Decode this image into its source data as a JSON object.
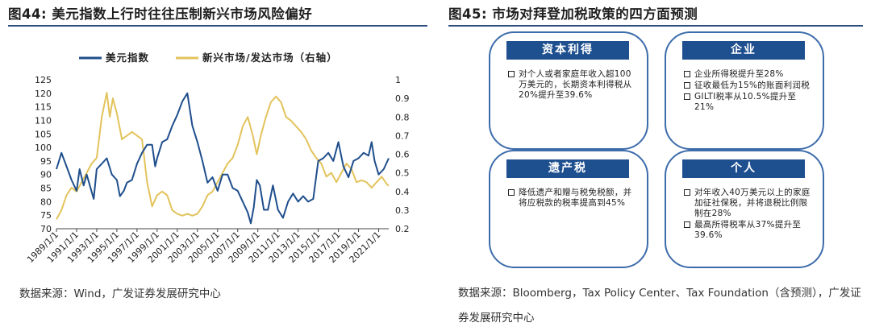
{
  "left_panel": {
    "title": "图44: 美元指数上行时往往压制新兴市场风险偏好",
    "source": "数据来源：Wind，广发证券发展研究中心"
  },
  "right_panel": {
    "title": "图45: 市场对拜登加税政策的四方面预测",
    "source": "数据来源：Bloomberg，Tax Policy Center、Tax Foundation（含预测），广发证券发展研究中心",
    "cards": [
      {
        "title": "资本利得",
        "items": [
          "对个人或者家庭年收入超100万美元的，长期资本利得税从20%提升至39.6%"
        ]
      },
      {
        "title": "企业",
        "items": [
          "企业所得税提升至28%",
          "征收最低为15%的账面利润税",
          "GILTI税率从10.5%提升至21%"
        ]
      },
      {
        "title": "遗产税",
        "items": [
          "降低遗产和赠与税免税额，并将应税款的税率提高到45%"
        ]
      },
      {
        "title": "个人",
        "items": [
          "对年收入40万美元以上的家庭加征社保税，并将退税比例限制在28%",
          "最高所得税率从37%提升至39.6%"
        ]
      }
    ]
  },
  "chart_data": {
    "type": "line",
    "title": "美元指数上行时往往压制新兴市场风险偏好",
    "legend": [
      "美元指数",
      "新兴市场/发达市场（右轴）"
    ],
    "legend_position": "top",
    "colors": {
      "usd": "#1f4e8c",
      "em": "#e3c35c"
    },
    "y_left": {
      "min": 70,
      "max": 125,
      "ticks": [
        70,
        75,
        80,
        85,
        90,
        95,
        100,
        105,
        110,
        115,
        120,
        125
      ]
    },
    "y_right": {
      "min": 0.2,
      "max": 1.0,
      "ticks": [
        "0.2",
        "0.3",
        "0.4",
        "0.5",
        "0.6",
        "0.7",
        "0.8",
        "0.9",
        "1"
      ]
    },
    "x_labels": [
      "1989/1/1",
      "1991/1/1",
      "1993/1/1",
      "1995/1/1",
      "1997/1/1",
      "1999/1/1",
      "2001/1/1",
      "2003/1/1",
      "2005/1/1",
      "2007/1/1",
      "2009/1/1",
      "2011/1/1",
      "2013/1/1",
      "2015/1/1",
      "2017/1/1",
      "2019/1/1",
      "2021/1/1"
    ],
    "x_range": [
      1989,
      2022
    ],
    "series": [
      {
        "name": "美元指数",
        "axis": "left",
        "points": [
          [
            1989.0,
            92
          ],
          [
            1989.5,
            98
          ],
          [
            1990.0,
            93
          ],
          [
            1990.5,
            88
          ],
          [
            1991.0,
            84
          ],
          [
            1991.3,
            92
          ],
          [
            1991.7,
            86
          ],
          [
            1992.0,
            90
          ],
          [
            1992.7,
            81
          ],
          [
            1993.0,
            92
          ],
          [
            1993.5,
            94
          ],
          [
            1994.0,
            96
          ],
          [
            1994.5,
            90
          ],
          [
            1995.0,
            88
          ],
          [
            1995.3,
            82
          ],
          [
            1995.7,
            84
          ],
          [
            1996.0,
            87
          ],
          [
            1996.5,
            88
          ],
          [
            1997.0,
            94
          ],
          [
            1997.5,
            98
          ],
          [
            1998.0,
            101
          ],
          [
            1998.5,
            101
          ],
          [
            1998.8,
            93
          ],
          [
            1999.0,
            96
          ],
          [
            1999.5,
            102
          ],
          [
            2000.0,
            103
          ],
          [
            2000.5,
            108
          ],
          [
            2001.0,
            112
          ],
          [
            2001.5,
            117
          ],
          [
            2002.0,
            120
          ],
          [
            2002.5,
            108
          ],
          [
            2003.0,
            102
          ],
          [
            2003.5,
            95
          ],
          [
            2004.0,
            87
          ],
          [
            2004.5,
            89
          ],
          [
            2005.0,
            84
          ],
          [
            2005.5,
            90
          ],
          [
            2006.0,
            90
          ],
          [
            2006.5,
            85
          ],
          [
            2007.0,
            84
          ],
          [
            2007.5,
            80
          ],
          [
            2008.0,
            76
          ],
          [
            2008.3,
            72
          ],
          [
            2008.6,
            78
          ],
          [
            2008.9,
            88
          ],
          [
            2009.2,
            86
          ],
          [
            2009.6,
            77
          ],
          [
            2010.0,
            77
          ],
          [
            2010.5,
            86
          ],
          [
            2011.0,
            77
          ],
          [
            2011.5,
            74
          ],
          [
            2012.0,
            80
          ],
          [
            2012.5,
            83
          ],
          [
            2013.0,
            80
          ],
          [
            2013.5,
            82
          ],
          [
            2014.0,
            80
          ],
          [
            2014.5,
            81
          ],
          [
            2015.0,
            95
          ],
          [
            2015.5,
            96
          ],
          [
            2016.0,
            98
          ],
          [
            2016.5,
            95
          ],
          [
            2017.0,
            102
          ],
          [
            2017.5,
            93
          ],
          [
            2018.0,
            89
          ],
          [
            2018.5,
            95
          ],
          [
            2019.0,
            96
          ],
          [
            2019.5,
            98
          ],
          [
            2020.0,
            97
          ],
          [
            2020.3,
            102
          ],
          [
            2020.6,
            95
          ],
          [
            2021.0,
            90
          ],
          [
            2021.5,
            92
          ],
          [
            2022.0,
            96
          ]
        ]
      },
      {
        "name": "新兴市场/发达市场（右轴）",
        "axis": "right",
        "points": [
          [
            1989.0,
            0.25
          ],
          [
            1989.5,
            0.3
          ],
          [
            1990.0,
            0.38
          ],
          [
            1990.5,
            0.42
          ],
          [
            1991.0,
            0.4
          ],
          [
            1991.5,
            0.45
          ],
          [
            1992.0,
            0.5
          ],
          [
            1992.5,
            0.55
          ],
          [
            1993.0,
            0.58
          ],
          [
            1993.5,
            0.8
          ],
          [
            1994.0,
            0.93
          ],
          [
            1994.3,
            0.8
          ],
          [
            1994.6,
            0.9
          ],
          [
            1995.0,
            0.82
          ],
          [
            1995.5,
            0.68
          ],
          [
            1996.0,
            0.7
          ],
          [
            1996.5,
            0.72
          ],
          [
            1997.0,
            0.7
          ],
          [
            1997.5,
            0.68
          ],
          [
            1998.0,
            0.45
          ],
          [
            1998.5,
            0.32
          ],
          [
            1999.0,
            0.38
          ],
          [
            1999.5,
            0.4
          ],
          [
            2000.0,
            0.38
          ],
          [
            2000.5,
            0.3
          ],
          [
            2001.0,
            0.28
          ],
          [
            2001.5,
            0.27
          ],
          [
            2002.0,
            0.28
          ],
          [
            2002.5,
            0.27
          ],
          [
            2003.0,
            0.28
          ],
          [
            2003.5,
            0.32
          ],
          [
            2004.0,
            0.38
          ],
          [
            2004.5,
            0.4
          ],
          [
            2005.0,
            0.45
          ],
          [
            2005.5,
            0.5
          ],
          [
            2006.0,
            0.55
          ],
          [
            2006.5,
            0.58
          ],
          [
            2007.0,
            0.65
          ],
          [
            2007.5,
            0.75
          ],
          [
            2008.0,
            0.8
          ],
          [
            2008.5,
            0.7
          ],
          [
            2008.9,
            0.6
          ],
          [
            2009.3,
            0.7
          ],
          [
            2009.8,
            0.8
          ],
          [
            2010.3,
            0.88
          ],
          [
            2010.8,
            0.91
          ],
          [
            2011.3,
            0.88
          ],
          [
            2011.8,
            0.8
          ],
          [
            2012.3,
            0.78
          ],
          [
            2012.8,
            0.75
          ],
          [
            2013.3,
            0.72
          ],
          [
            2013.8,
            0.68
          ],
          [
            2014.3,
            0.62
          ],
          [
            2014.8,
            0.58
          ],
          [
            2015.3,
            0.55
          ],
          [
            2015.8,
            0.48
          ],
          [
            2016.3,
            0.5
          ],
          [
            2016.8,
            0.45
          ],
          [
            2017.3,
            0.5
          ],
          [
            2017.8,
            0.55
          ],
          [
            2018.3,
            0.52
          ],
          [
            2018.8,
            0.45
          ],
          [
            2019.3,
            0.46
          ],
          [
            2019.8,
            0.45
          ],
          [
            2020.3,
            0.42
          ],
          [
            2020.8,
            0.45
          ],
          [
            2021.3,
            0.48
          ],
          [
            2021.8,
            0.44
          ],
          [
            2022.0,
            0.43
          ]
        ]
      }
    ]
  }
}
